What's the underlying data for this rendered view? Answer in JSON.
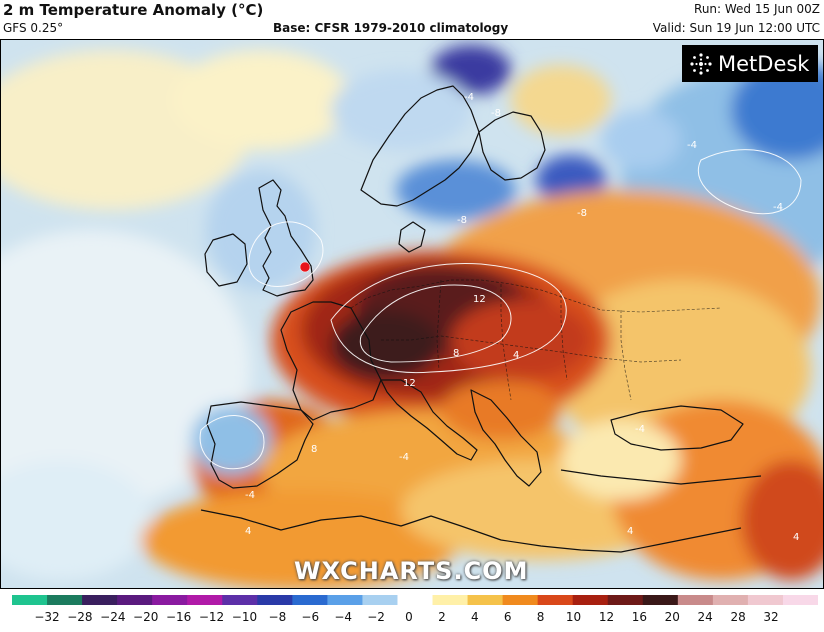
{
  "header": {
    "title": "2 m Temperature Anomaly (°C)",
    "model": "GFS 0.25°",
    "base": "Base: CFSR 1979-2010 climatology",
    "run": "Run: Wed 15 Jun 00Z",
    "valid": "Valid: Sun 19 Jun 12:00 UTC"
  },
  "logo": {
    "text": "MetDesk"
  },
  "watermark": "WXCHARTS.COM",
  "contour_labels": [
    "12",
    "12",
    "8",
    "8",
    "-8",
    "-8",
    "-8",
    "-4",
    "-4",
    "-4",
    "-4",
    "-4",
    "-4",
    "4",
    "4",
    "4",
    "4"
  ],
  "colorbar": {
    "ticks": [
      "−32",
      "−28",
      "−24",
      "−20",
      "−16",
      "−12",
      "−10",
      "−8",
      "−6",
      "−4",
      "−2",
      "0",
      "2",
      "4",
      "6",
      "8",
      "10",
      "12",
      "16",
      "20",
      "24",
      "28",
      "32"
    ],
    "colors": [
      "#1fc48f",
      "#1c7b5e",
      "#3a1f5e",
      "#5a1a7e",
      "#8a1aa0",
      "#b01aa8",
      "#5c2fa8",
      "#2a3aa8",
      "#2a6ad0",
      "#5aa0e8",
      "#a8d0f0",
      "#ffffff",
      "#fff0a8",
      "#f5c24a",
      "#f08a1e",
      "#d9481a",
      "#a82010",
      "#6e1a18",
      "#3a1818",
      "#c88a8a",
      "#e0b0b0",
      "#f0c8d0",
      "#f8d8e8"
    ]
  },
  "marker_colors": {
    "location_marker": "#e8141b"
  }
}
